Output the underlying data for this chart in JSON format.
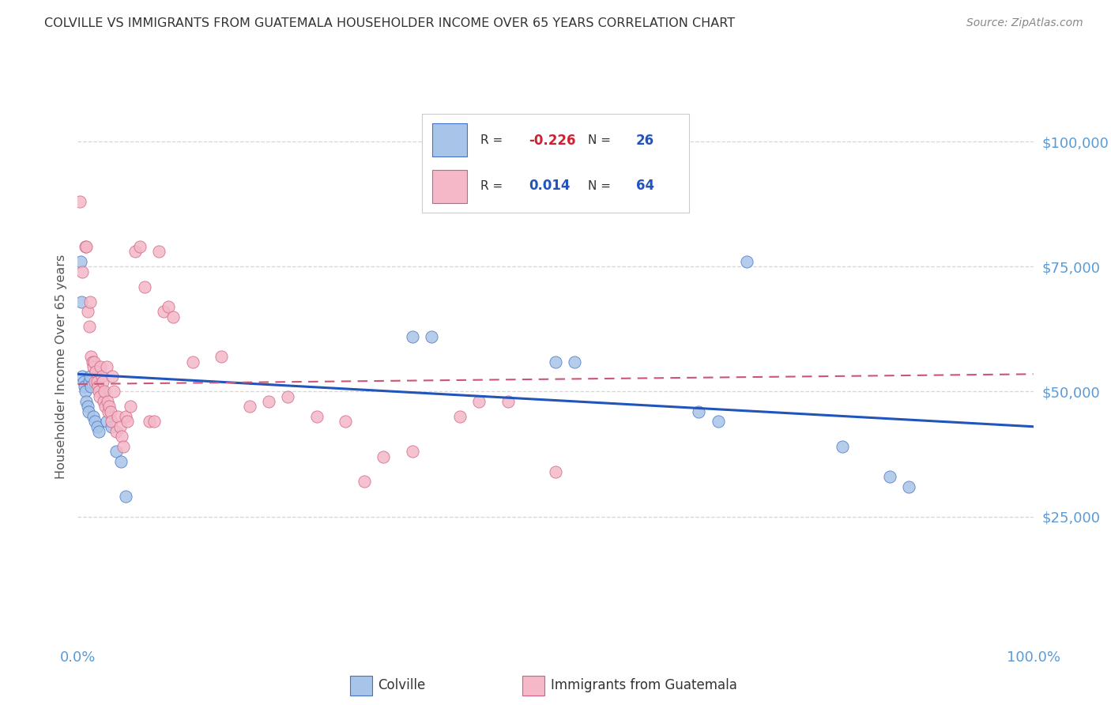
{
  "title": "COLVILLE VS IMMIGRANTS FROM GUATEMALA HOUSEHOLDER INCOME OVER 65 YEARS CORRELATION CHART",
  "source": "Source: ZipAtlas.com",
  "ylabel": "Householder Income Over 65 years",
  "ytick_labels": [
    "$25,000",
    "$50,000",
    "$75,000",
    "$100,000"
  ],
  "ytick_values": [
    25000,
    50000,
    75000,
    100000
  ],
  "colville_scatter": [
    [
      0.003,
      76000
    ],
    [
      0.004,
      68000
    ],
    [
      0.005,
      53000
    ],
    [
      0.006,
      52000
    ],
    [
      0.007,
      51000
    ],
    [
      0.008,
      50000
    ],
    [
      0.009,
      48000
    ],
    [
      0.01,
      47000
    ],
    [
      0.011,
      46000
    ],
    [
      0.012,
      52000
    ],
    [
      0.013,
      53000
    ],
    [
      0.014,
      51000
    ],
    [
      0.016,
      45000
    ],
    [
      0.018,
      44000
    ],
    [
      0.02,
      43000
    ],
    [
      0.022,
      42000
    ],
    [
      0.025,
      50000
    ],
    [
      0.03,
      44000
    ],
    [
      0.035,
      43000
    ],
    [
      0.04,
      38000
    ],
    [
      0.045,
      36000
    ],
    [
      0.05,
      29000
    ],
    [
      0.35,
      61000
    ],
    [
      0.37,
      61000
    ],
    [
      0.5,
      56000
    ],
    [
      0.52,
      56000
    ],
    [
      0.65,
      46000
    ],
    [
      0.67,
      44000
    ],
    [
      0.7,
      76000
    ],
    [
      0.8,
      39000
    ],
    [
      0.85,
      33000
    ],
    [
      0.87,
      31000
    ]
  ],
  "guatemala_scatter": [
    [
      0.002,
      88000
    ],
    [
      0.005,
      74000
    ],
    [
      0.008,
      79000
    ],
    [
      0.009,
      79000
    ],
    [
      0.01,
      66000
    ],
    [
      0.012,
      63000
    ],
    [
      0.013,
      68000
    ],
    [
      0.014,
      57000
    ],
    [
      0.015,
      56000
    ],
    [
      0.016,
      55000
    ],
    [
      0.017,
      56000
    ],
    [
      0.018,
      52000
    ],
    [
      0.019,
      54000
    ],
    [
      0.02,
      52000
    ],
    [
      0.021,
      51000
    ],
    [
      0.022,
      50000
    ],
    [
      0.023,
      49000
    ],
    [
      0.024,
      55000
    ],
    [
      0.025,
      53000
    ],
    [
      0.026,
      52000
    ],
    [
      0.027,
      48000
    ],
    [
      0.028,
      50000
    ],
    [
      0.029,
      47000
    ],
    [
      0.03,
      55000
    ],
    [
      0.031,
      48000
    ],
    [
      0.032,
      46000
    ],
    [
      0.033,
      47000
    ],
    [
      0.034,
      46000
    ],
    [
      0.035,
      44000
    ],
    [
      0.036,
      53000
    ],
    [
      0.038,
      50000
    ],
    [
      0.04,
      42000
    ],
    [
      0.042,
      45000
    ],
    [
      0.044,
      43000
    ],
    [
      0.046,
      41000
    ],
    [
      0.048,
      39000
    ],
    [
      0.05,
      45000
    ],
    [
      0.052,
      44000
    ],
    [
      0.055,
      47000
    ],
    [
      0.06,
      78000
    ],
    [
      0.065,
      79000
    ],
    [
      0.07,
      71000
    ],
    [
      0.075,
      44000
    ],
    [
      0.08,
      44000
    ],
    [
      0.085,
      78000
    ],
    [
      0.09,
      66000
    ],
    [
      0.095,
      67000
    ],
    [
      0.1,
      65000
    ],
    [
      0.12,
      56000
    ],
    [
      0.15,
      57000
    ],
    [
      0.18,
      47000
    ],
    [
      0.2,
      48000
    ],
    [
      0.22,
      49000
    ],
    [
      0.25,
      45000
    ],
    [
      0.28,
      44000
    ],
    [
      0.3,
      32000
    ],
    [
      0.32,
      37000
    ],
    [
      0.35,
      38000
    ],
    [
      0.4,
      45000
    ],
    [
      0.42,
      48000
    ],
    [
      0.45,
      48000
    ],
    [
      0.5,
      34000
    ]
  ],
  "colville_line_x": [
    0.0,
    1.0
  ],
  "colville_line_y": [
    53500,
    43000
  ],
  "guatemala_line_x": [
    0.0,
    1.0
  ],
  "guatemala_line_y": [
    51500,
    53500
  ],
  "background_color": "#ffffff",
  "grid_color": "#cccccc",
  "title_color": "#333333",
  "source_color": "#888888",
  "axis_label_color": "#555555",
  "tick_color": "#5b9bd5",
  "scatter_colville_color": "#a8c4e8",
  "scatter_colville_edge": "#4472c4",
  "scatter_guatemala_color": "#f4b8c8",
  "scatter_guatemala_edge": "#d06080",
  "line_colville_color": "#2255bb",
  "line_guatemala_color": "#cc5577",
  "legend_R_neg_color": "#cc2233",
  "legend_R_pos_color": "#2255bb",
  "legend_N_color": "#2255bb",
  "legend_text_color": "#333333",
  "xlim": [
    0.0,
    1.0
  ],
  "ylim": [
    0,
    110000
  ],
  "scatter_size": 120
}
